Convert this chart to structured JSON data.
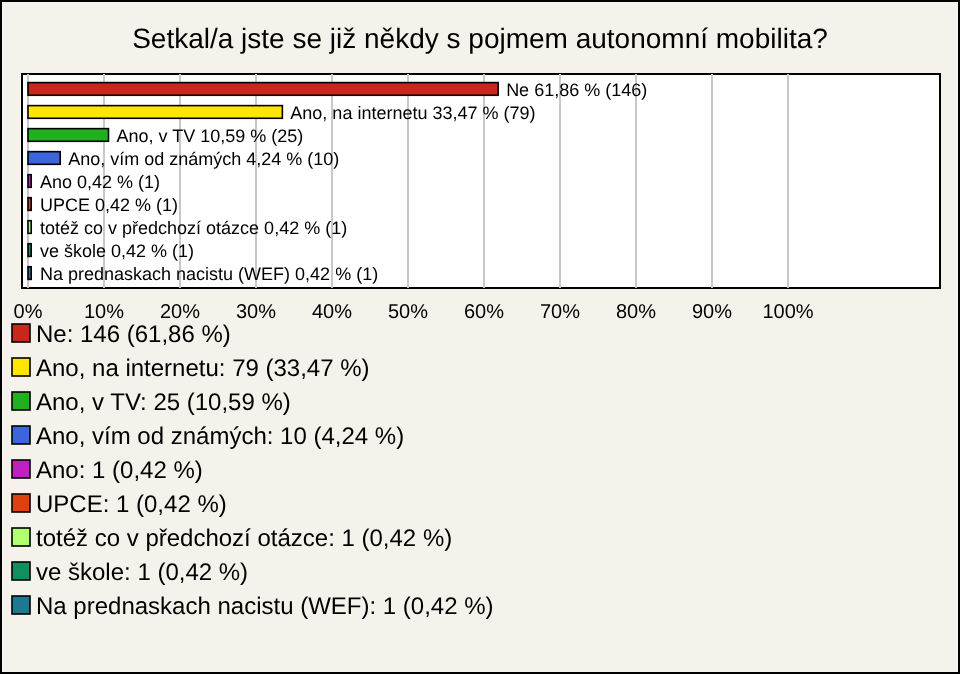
{
  "chart_data": {
    "type": "bar",
    "orientation": "horizontal",
    "title": "Setkal/a jste se již někdy s pojmem autonomní mobilita?",
    "categories": [
      null,
      null,
      null,
      null,
      null,
      null,
      null,
      null,
      null
    ],
    "series": [
      {
        "name": "Ne: 146 (61,86 %)",
        "color": "#c8281c",
        "values": [
          61.86,
          null,
          null,
          null,
          null,
          null,
          null,
          null,
          null
        ],
        "value_labels": [
          "Ne 61,86 % (146)",
          null,
          null,
          null,
          null,
          null,
          null,
          null,
          null
        ]
      },
      {
        "name": "Ano, na internetu: 79 (33,47 %)",
        "color": "#ffe600",
        "values": [
          null,
          33.47,
          null,
          null,
          null,
          null,
          null,
          null,
          null
        ],
        "value_labels": [
          null,
          "Ano, na internetu 33,47 % (79)",
          null,
          null,
          null,
          null,
          null,
          null,
          null
        ]
      },
      {
        "name": "Ano, v TV: 25 (10,59 %)",
        "color": "#20b020",
        "values": [
          null,
          null,
          10.59,
          null,
          null,
          null,
          null,
          null,
          null
        ],
        "value_labels": [
          null,
          null,
          "Ano, v TV 10,59 % (25)",
          null,
          null,
          null,
          null,
          null,
          null
        ]
      },
      {
        "name": "Ano, vím od známých: 10 (4,24 %)",
        "color": "#3c64dc",
        "values": [
          null,
          null,
          null,
          4.24,
          null,
          null,
          null,
          null,
          null
        ],
        "value_labels": [
          null,
          null,
          null,
          "Ano, vím od známých 4,24 % (10)",
          null,
          null,
          null,
          null,
          null
        ]
      },
      {
        "name": "Ano: 1 (0,42 %)",
        "color": "#c020c0",
        "values": [
          null,
          null,
          null,
          null,
          0.42,
          null,
          null,
          null,
          null
        ],
        "value_labels": [
          null,
          null,
          null,
          null,
          "Ano 0,42 % (1)",
          null,
          null,
          null,
          null
        ]
      },
      {
        "name": "UPCE: 1 (0,42 %)",
        "color": "#e04010",
        "values": [
          null,
          null,
          null,
          null,
          null,
          0.42,
          null,
          null,
          null
        ],
        "value_labels": [
          null,
          null,
          null,
          null,
          null,
          "UPCE 0,42 % (1)",
          null,
          null,
          null
        ]
      },
      {
        "name": "totéž co v předchozí otázce: 1 (0,42 %)",
        "color": "#b0ff70",
        "values": [
          null,
          null,
          null,
          null,
          null,
          null,
          0.42,
          null,
          null
        ],
        "value_labels": [
          null,
          null,
          null,
          null,
          null,
          null,
          "totéž co v předchozí otázce 0,42 % (1)",
          null,
          null
        ]
      },
      {
        "name": "ve škole: 1 (0,42 %)",
        "color": "#109060",
        "values": [
          null,
          null,
          null,
          null,
          null,
          null,
          null,
          0.42,
          null
        ],
        "value_labels": [
          null,
          null,
          null,
          null,
          null,
          null,
          null,
          "ve škole 0,42 % (1)",
          null
        ]
      },
      {
        "name": "Na prednaskach nacistu (WEF): 1 (0,42 %)",
        "color": "#207890",
        "values": [
          null,
          null,
          null,
          null,
          null,
          null,
          null,
          null,
          0.42
        ],
        "value_labels": [
          null,
          null,
          null,
          null,
          null,
          null,
          null,
          null,
          "Na prednaskach nacistu (WEF) 0,42 % (1)"
        ]
      }
    ],
    "xlim": [
      0,
      120
    ],
    "xticks": [
      {
        "value": 0,
        "label": "0%"
      },
      {
        "value": 10,
        "label": "10%"
      },
      {
        "value": 20,
        "label": "20%"
      },
      {
        "value": 30,
        "label": "30%"
      },
      {
        "value": 40,
        "label": "40%"
      },
      {
        "value": 50,
        "label": "50%"
      },
      {
        "value": 60,
        "label": "60%"
      },
      {
        "value": 70,
        "label": "70%"
      },
      {
        "value": 80,
        "label": "80%"
      },
      {
        "value": 90,
        "label": "90%"
      },
      {
        "value": 100,
        "label": "100%"
      }
    ],
    "grid": "x",
    "legend": "bottom"
  }
}
